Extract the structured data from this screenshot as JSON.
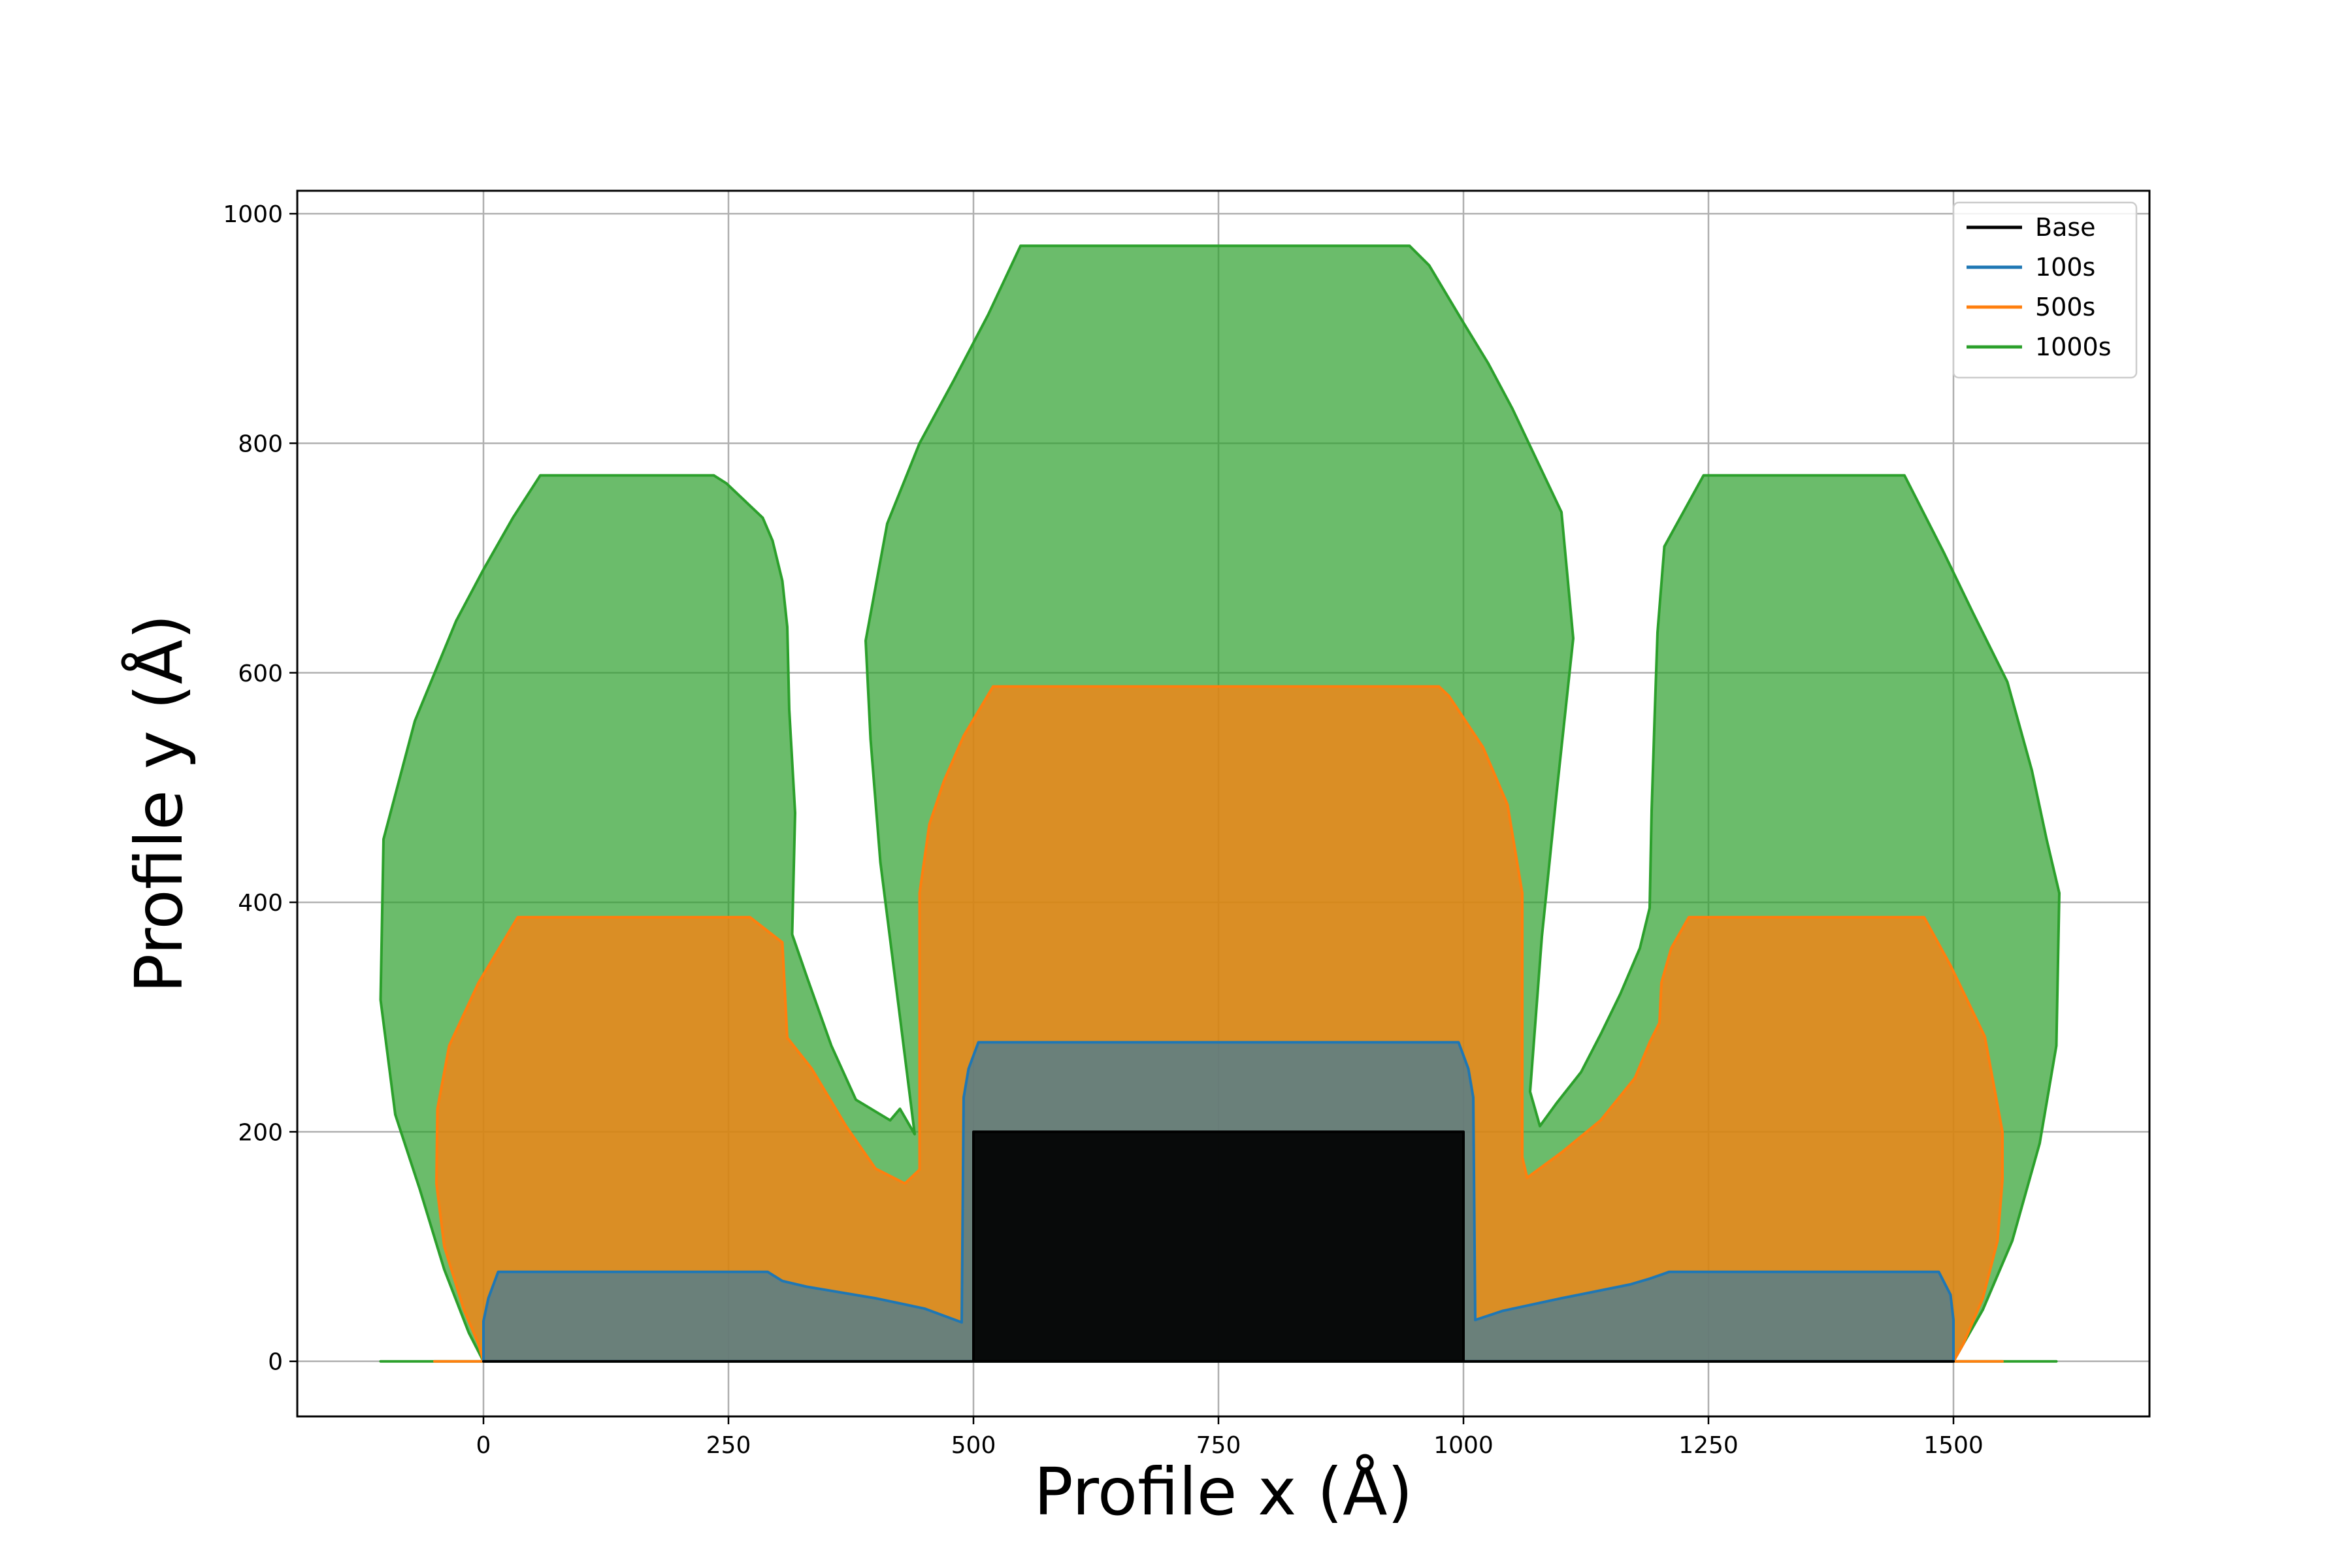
{
  "chart_data": {
    "type": "area",
    "title": "",
    "xlabel": "Profile x (Å)",
    "ylabel": "Profile y (Å)",
    "xlim": [
      -190,
      1700
    ],
    "ylim": [
      -48,
      1020
    ],
    "xticks": [
      0,
      250,
      500,
      750,
      1000,
      1250,
      1500
    ],
    "yticks": [
      0,
      200,
      400,
      600,
      800,
      1000
    ],
    "grid": true,
    "legend_position": "top-right",
    "series": [
      {
        "name": "Base",
        "color": "#000000",
        "fill_opacity": 0.92,
        "points": [
          [
            0,
            0
          ],
          [
            500,
            0
          ],
          [
            500,
            200
          ],
          [
            1000,
            200
          ],
          [
            1000,
            0
          ],
          [
            1500,
            0
          ]
        ]
      },
      {
        "name": "100s",
        "color": "#1f77b4",
        "fill_opacity": 0.6,
        "points": [
          [
            0,
            0
          ],
          [
            0,
            35
          ],
          [
            5,
            55
          ],
          [
            15,
            78
          ],
          [
            290,
            78
          ],
          [
            305,
            70
          ],
          [
            330,
            65
          ],
          [
            400,
            55
          ],
          [
            450,
            46
          ],
          [
            488,
            34
          ],
          [
            490,
            230
          ],
          [
            495,
            255
          ],
          [
            505,
            278
          ],
          [
            995,
            278
          ],
          [
            1005,
            255
          ],
          [
            1010,
            230
          ],
          [
            1012,
            36
          ],
          [
            1040,
            44
          ],
          [
            1100,
            55
          ],
          [
            1170,
            67
          ],
          [
            1190,
            72
          ],
          [
            1210,
            78
          ],
          [
            1485,
            78
          ],
          [
            1497,
            58
          ],
          [
            1500,
            36
          ],
          [
            1500,
            0
          ]
        ]
      },
      {
        "name": "500s",
        "color": "#ff7f0e",
        "fill_opacity": 0.75,
        "points": [
          [
            -50,
            0
          ],
          [
            0,
            0
          ],
          [
            -5,
            15
          ],
          [
            -20,
            45
          ],
          [
            -40,
            100
          ],
          [
            -48,
            155
          ],
          [
            -47,
            220
          ],
          [
            -35,
            275
          ],
          [
            -5,
            330
          ],
          [
            35,
            387
          ],
          [
            272,
            387
          ],
          [
            305,
            365
          ],
          [
            310,
            282
          ],
          [
            335,
            255
          ],
          [
            370,
            205
          ],
          [
            400,
            168
          ],
          [
            430,
            155
          ],
          [
            445,
            167
          ],
          [
            445,
            408
          ],
          [
            455,
            468
          ],
          [
            470,
            506
          ],
          [
            490,
            545
          ],
          [
            520,
            588
          ],
          [
            975,
            588
          ],
          [
            985,
            580
          ],
          [
            1020,
            535
          ],
          [
            1045,
            485
          ],
          [
            1060,
            408
          ],
          [
            1060,
            178
          ],
          [
            1065,
            160
          ],
          [
            1100,
            182
          ],
          [
            1140,
            210
          ],
          [
            1175,
            247
          ],
          [
            1190,
            278
          ],
          [
            1200,
            295
          ],
          [
            1202,
            330
          ],
          [
            1212,
            360
          ],
          [
            1230,
            387
          ],
          [
            1470,
            387
          ],
          [
            1497,
            345
          ],
          [
            1532,
            283
          ],
          [
            1550,
            200
          ],
          [
            1550,
            158
          ],
          [
            1545,
            105
          ],
          [
            1530,
            55
          ],
          [
            1510,
            15
          ],
          [
            1500,
            0
          ],
          [
            1550,
            0
          ]
        ]
      },
      {
        "name": "1000s",
        "color": "#2ca02c",
        "fill_opacity": 0.7,
        "points": [
          [
            -105,
            0
          ],
          [
            0,
            0
          ],
          [
            -15,
            25
          ],
          [
            -40,
            80
          ],
          [
            -65,
            150
          ],
          [
            -90,
            215
          ],
          [
            -105,
            315
          ],
          [
            -102,
            455
          ],
          [
            -70,
            558
          ],
          [
            -28,
            645
          ],
          [
            0,
            690
          ],
          [
            30,
            735
          ],
          [
            58,
            772
          ],
          [
            235,
            772
          ],
          [
            248,
            765
          ],
          [
            285,
            735
          ],
          [
            295,
            715
          ],
          [
            305,
            680
          ],
          [
            310,
            640
          ],
          [
            312,
            568
          ],
          [
            318,
            478
          ],
          [
            315,
            372
          ],
          [
            330,
            335
          ],
          [
            355,
            275
          ],
          [
            380,
            228
          ],
          [
            415,
            210
          ],
          [
            425,
            220
          ],
          [
            440,
            198
          ],
          [
            425,
            300
          ],
          [
            405,
            435
          ],
          [
            395,
            542
          ],
          [
            390,
            628
          ],
          [
            412,
            730
          ],
          [
            445,
            800
          ],
          [
            480,
            855
          ],
          [
            515,
            912
          ],
          [
            548,
            972
          ],
          [
            945,
            972
          ],
          [
            965,
            955
          ],
          [
            1000,
            905
          ],
          [
            1025,
            870
          ],
          [
            1050,
            830
          ],
          [
            1075,
            785
          ],
          [
            1100,
            740
          ],
          [
            1112,
            630
          ],
          [
            1095,
            495
          ],
          [
            1080,
            370
          ],
          [
            1068,
            235
          ],
          [
            1078,
            205
          ],
          [
            1095,
            225
          ],
          [
            1120,
            252
          ],
          [
            1140,
            285
          ],
          [
            1160,
            320
          ],
          [
            1180,
            360
          ],
          [
            1190,
            395
          ],
          [
            1192,
            480
          ],
          [
            1195,
            560
          ],
          [
            1198,
            635
          ],
          [
            1205,
            710
          ],
          [
            1245,
            772
          ],
          [
            1450,
            772
          ],
          [
            1490,
            705
          ],
          [
            1520,
            652
          ],
          [
            1555,
            592
          ],
          [
            1580,
            515
          ],
          [
            1595,
            455
          ],
          [
            1608,
            408
          ],
          [
            1605,
            275
          ],
          [
            1588,
            190
          ],
          [
            1560,
            105
          ],
          [
            1530,
            45
          ],
          [
            1510,
            15
          ],
          [
            1500,
            0
          ],
          [
            1605,
            0
          ]
        ]
      }
    ]
  }
}
